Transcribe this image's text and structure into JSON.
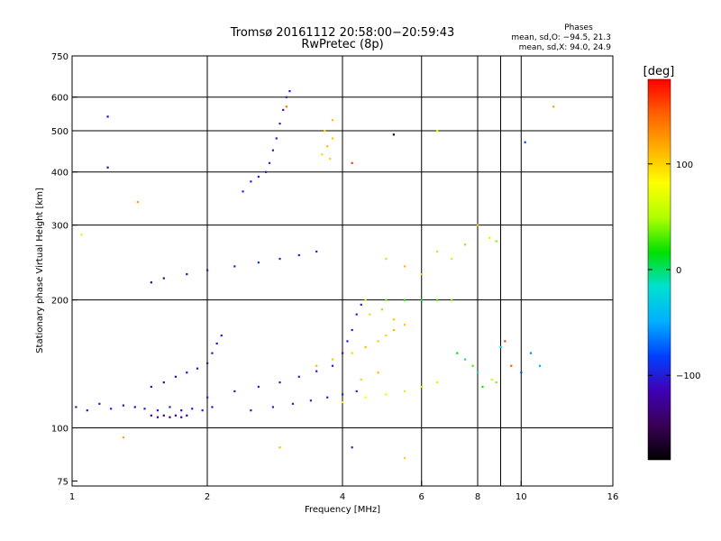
{
  "chart_data": {
    "type": "scatter",
    "title": "Tromsø 20161112 20:58:00−20:59:43",
    "subtitle": "RwPretec (8p)",
    "notes": {
      "header": "Phases",
      "line1": "mean, sd,O: −94.5, 21.3",
      "line2": "mean, sd,X:  94.0, 24.9"
    },
    "xlabel": "Frequency [MHz]",
    "ylabel": "Stationary phase Virtual Height [km]",
    "x_scale": "log",
    "y_scale": "log",
    "xlim": [
      1,
      16
    ],
    "ylim": [
      73,
      750
    ],
    "x_ticks": [
      1,
      2,
      4,
      6,
      8,
      10,
      16
    ],
    "x_tick_labels": [
      "1",
      "2",
      "4",
      "6",
      "8",
      "10",
      "16"
    ],
    "x_gridlines": [
      2,
      4,
      6,
      8,
      9,
      10
    ],
    "y_ticks": [
      75,
      100,
      200,
      300,
      400,
      500,
      600,
      750
    ],
    "y_tick_labels": [
      "75",
      "100",
      "200",
      "300",
      "400",
      "500",
      "600",
      "750"
    ],
    "y_gridlines": [
      100,
      200,
      300,
      400,
      500,
      600
    ],
    "grid": true,
    "colorbar": {
      "label": "[deg]",
      "range": [
        -180,
        180
      ],
      "ticks": [
        100,
        0,
        -100
      ],
      "tick_labels": [
        "100",
        "0",
        "−100"
      ],
      "colors": [
        "#000000",
        "#3a0055",
        "#3f00b4",
        "#0040ff",
        "#00b0ff",
        "#00e0d0",
        "#00e000",
        "#b0ff00",
        "#ffff00",
        "#ffb000",
        "#ff6000",
        "#ff0000"
      ]
    },
    "series": [
      {
        "values": [
          [
            1.02,
            112,
            -100
          ],
          [
            1.08,
            110,
            -110
          ],
          [
            1.15,
            114,
            -105
          ],
          [
            1.22,
            111,
            -100
          ],
          [
            1.3,
            113,
            -108
          ],
          [
            1.38,
            112,
            -110
          ],
          [
            1.45,
            111,
            -100
          ],
          [
            1.55,
            110,
            -108
          ],
          [
            1.65,
            112,
            -100
          ],
          [
            1.75,
            110,
            -110
          ],
          [
            1.85,
            111,
            -105
          ],
          [
            1.95,
            110,
            -100
          ],
          [
            2.05,
            112,
            -108
          ]
        ]
      },
      {
        "values": [
          [
            1.5,
            107,
            -130
          ],
          [
            1.55,
            106,
            -135
          ],
          [
            1.6,
            107,
            -130
          ],
          [
            1.65,
            106,
            -140
          ],
          [
            1.7,
            107,
            -135
          ],
          [
            1.75,
            106,
            -130
          ],
          [
            1.8,
            107,
            -135
          ]
        ]
      },
      {
        "values": [
          [
            1.5,
            125,
            -110
          ],
          [
            1.6,
            128,
            -115
          ],
          [
            1.7,
            132,
            -110
          ],
          [
            1.8,
            135,
            -112
          ],
          [
            1.9,
            138,
            -110
          ],
          [
            2.0,
            142,
            -105
          ],
          [
            2.05,
            150,
            -108
          ],
          [
            2.1,
            158,
            -110
          ],
          [
            2.15,
            165,
            -105
          ]
        ]
      },
      {
        "values": [
          [
            2.0,
            118,
            -95
          ],
          [
            2.3,
            122,
            -100
          ],
          [
            2.6,
            125,
            -95
          ],
          [
            2.9,
            128,
            -100
          ],
          [
            3.2,
            132,
            -95
          ],
          [
            3.5,
            136,
            -100
          ],
          [
            3.8,
            140,
            -95
          ],
          [
            4.0,
            150,
            -100
          ],
          [
            4.1,
            160,
            -95
          ],
          [
            4.2,
            170,
            -100
          ],
          [
            4.3,
            185,
            -95
          ],
          [
            4.4,
            195,
            -100
          ]
        ]
      },
      {
        "values": [
          [
            2.5,
            110,
            -100
          ],
          [
            2.8,
            112,
            -95
          ],
          [
            3.1,
            114,
            -100
          ],
          [
            3.4,
            116,
            -95
          ],
          [
            3.7,
            118,
            -100
          ],
          [
            4.0,
            120,
            -95
          ],
          [
            4.3,
            122,
            -100
          ]
        ]
      },
      {
        "values": [
          [
            2.4,
            360,
            -100
          ],
          [
            2.5,
            380,
            -95
          ],
          [
            2.6,
            390,
            -100
          ],
          [
            2.7,
            400,
            -100
          ],
          [
            2.75,
            420,
            -95
          ],
          [
            2.8,
            450,
            -100
          ],
          [
            2.85,
            480,
            -100
          ],
          [
            2.9,
            520,
            -95
          ],
          [
            2.95,
            560,
            -100
          ],
          [
            3.0,
            600,
            -95
          ],
          [
            3.05,
            620,
            -100
          ]
        ]
      },
      {
        "values": [
          [
            1.5,
            220,
            -130
          ],
          [
            1.6,
            225,
            -125
          ],
          [
            1.8,
            230,
            -110
          ],
          [
            2.0,
            235,
            -100
          ],
          [
            2.3,
            240,
            -100
          ],
          [
            2.6,
            245,
            -90
          ],
          [
            2.9,
            250,
            -95
          ],
          [
            3.2,
            255,
            -100
          ],
          [
            3.5,
            260,
            -95
          ]
        ]
      },
      {
        "values": [
          [
            3.6,
            440,
            100
          ],
          [
            3.7,
            460,
            110
          ],
          [
            3.8,
            480,
            105
          ],
          [
            3.75,
            430,
            100
          ],
          [
            3.65,
            500,
            95
          ],
          [
            3.8,
            530,
            110
          ]
        ]
      },
      {
        "values": [
          [
            3.5,
            140,
            110
          ],
          [
            3.8,
            145,
            105
          ],
          [
            4.2,
            150,
            100
          ],
          [
            4.5,
            155,
            110
          ],
          [
            4.8,
            160,
            105
          ],
          [
            5.0,
            165,
            100
          ],
          [
            5.2,
            170,
            110
          ],
          [
            5.5,
            175,
            105
          ],
          [
            4.6,
            185,
            100
          ],
          [
            4.9,
            190,
            110
          ],
          [
            5.2,
            180,
            105
          ],
          [
            4.4,
            130,
            100
          ],
          [
            4.8,
            135,
            110
          ]
        ]
      },
      {
        "values": [
          [
            4.5,
            200,
            60
          ],
          [
            5.0,
            200,
            40
          ],
          [
            5.5,
            200,
            20
          ],
          [
            6.0,
            200,
            10
          ],
          [
            6.5,
            200,
            30
          ],
          [
            7.0,
            200,
            40
          ]
        ]
      },
      {
        "values": [
          [
            4.0,
            115,
            90
          ],
          [
            4.5,
            118,
            80
          ],
          [
            5.0,
            120,
            70
          ],
          [
            5.5,
            122,
            60
          ],
          [
            6.0,
            125,
            50
          ],
          [
            6.5,
            128,
            60
          ]
        ]
      },
      {
        "values": [
          [
            7.2,
            150,
            10
          ],
          [
            7.5,
            145,
            -20
          ],
          [
            7.8,
            140,
            30
          ],
          [
            8.0,
            135,
            -10
          ],
          [
            8.2,
            125,
            20
          ],
          [
            8.6,
            130,
            60
          ],
          [
            8.8,
            128,
            40
          ],
          [
            9.0,
            155,
            -30
          ],
          [
            9.2,
            160,
            160
          ],
          [
            9.5,
            140,
            150
          ],
          [
            10.0,
            135,
            -80
          ],
          [
            10.5,
            150,
            -60
          ],
          [
            11,
            140,
            -50
          ]
        ]
      },
      {
        "values": [
          [
            5.0,
            250,
            100
          ],
          [
            5.5,
            240,
            110
          ],
          [
            6.0,
            230,
            105
          ],
          [
            6.5,
            260,
            100
          ],
          [
            7.0,
            250,
            95
          ],
          [
            7.5,
            270,
            110
          ],
          [
            8.0,
            300,
            105
          ],
          [
            8.5,
            280,
            60
          ],
          [
            8.8,
            275,
            40
          ]
        ]
      },
      {
        "values": [
          [
            1.2,
            540,
            -120
          ],
          [
            1.2,
            410,
            -130
          ],
          [
            3.0,
            570,
            140
          ],
          [
            5.2,
            490,
            -170
          ],
          [
            10.2,
            470,
            -80
          ],
          [
            11.8,
            570,
            120
          ],
          [
            6.5,
            500,
            60
          ],
          [
            4.2,
            420,
            160
          ],
          [
            1.4,
            340,
            120
          ],
          [
            1.05,
            285,
            90
          ],
          [
            1.3,
            95,
            120
          ],
          [
            2.9,
            90,
            110
          ],
          [
            4.2,
            90,
            -100
          ],
          [
            5.5,
            85,
            100
          ]
        ]
      }
    ]
  }
}
